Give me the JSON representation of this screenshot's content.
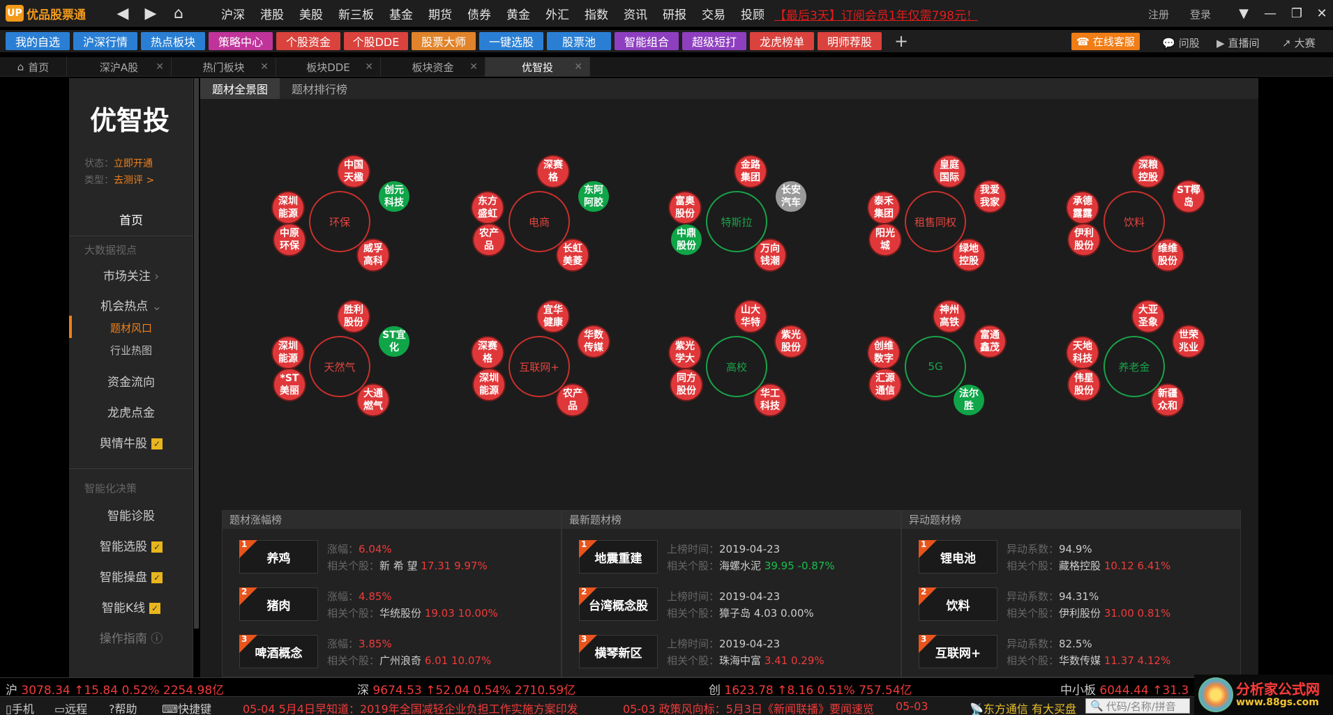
{
  "title_bar": {
    "logo_mark": "UP",
    "app_name": "优品股票通",
    "menu": [
      "沪深",
      "港股",
      "美股",
      "新三板",
      "基金",
      "期货",
      "债券",
      "黄金",
      "外汇",
      "指数",
      "资讯",
      "研报",
      "交易",
      "投顾"
    ],
    "promo": "【最后3天】订阅会员1年仅需798元！",
    "register": "注册",
    "login": "登录"
  },
  "toolbar": {
    "buttons": [
      {
        "label": "我的自选",
        "color": "#2a7fd4"
      },
      {
        "label": "沪深行情",
        "color": "#2a7fd4"
      },
      {
        "label": "热点板块",
        "color": "#2a7fd4"
      },
      {
        "label": "策略中心",
        "color": "#c0349a"
      },
      {
        "label": "个股资金",
        "color": "#d9423d"
      },
      {
        "label": "个股DDE",
        "color": "#d9423d"
      },
      {
        "label": "股票大师",
        "color": "#e0832a"
      },
      {
        "label": "一键选股",
        "color": "#2a7fd4"
      },
      {
        "label": "股票池",
        "color": "#2a7fd4"
      },
      {
        "label": "智能组合",
        "color": "#8e3fbf"
      },
      {
        "label": "超级短打",
        "color": "#8e3fbf"
      },
      {
        "label": "龙虎榜单",
        "color": "#d9423d"
      },
      {
        "label": "明师荐股",
        "color": "#d9423d"
      }
    ],
    "service": "在线客服",
    "ask": "问股",
    "live": "直播间",
    "market": "大赛"
  },
  "tabs": [
    {
      "label": "首页",
      "closable": false
    },
    {
      "label": "深沪A股",
      "closable": true
    },
    {
      "label": "热门板块",
      "closable": true
    },
    {
      "label": "板块DDE",
      "closable": true
    },
    {
      "label": "板块资金",
      "closable": true
    },
    {
      "label": "优智投",
      "closable": true,
      "active": true
    }
  ],
  "sidebar": {
    "brand": "优智投",
    "status_label": "状态：",
    "status_value": "立即开通",
    "type_label": "类型：",
    "type_value": "去测评 >",
    "home": "首页",
    "group1": "大数据视点",
    "market_focus": "市场关注",
    "opportunity": "机会热点",
    "theme_wind": "题材风口",
    "industry_map": "行业热图",
    "fund_flow": "资金流向",
    "dragon": "龙虎点金",
    "sentiment": "舆情牛股",
    "group2": "智能化决策",
    "diagnosis": "智能诊股",
    "selection": "智能选股",
    "trading": "智能操盘",
    "kline": "智能K线",
    "guide": "操作指南"
  },
  "subtabs": [
    "题材全景图",
    "题材排行榜"
  ],
  "themes": [
    {
      "name": "环保",
      "green": false,
      "stocks": [
        {
          "n": "中国天楹",
          "c": "r"
        },
        {
          "n": "创元科技",
          "c": "gr"
        },
        {
          "n": "深圳能源",
          "c": "r"
        },
        {
          "n": "中原环保",
          "c": "r"
        },
        {
          "n": "威孚高科",
          "c": "r"
        }
      ]
    },
    {
      "name": "电商",
      "green": false,
      "stocks": [
        {
          "n": "深赛格",
          "c": "r"
        },
        {
          "n": "东阿阿胶",
          "c": "gr"
        },
        {
          "n": "东方盛虹",
          "c": "r"
        },
        {
          "n": "农产品",
          "c": "r"
        },
        {
          "n": "长虹美菱",
          "c": "r"
        }
      ]
    },
    {
      "name": "特斯拉",
      "green": true,
      "stocks": [
        {
          "n": "金路集团",
          "c": "r"
        },
        {
          "n": "长安汽车",
          "c": "gy"
        },
        {
          "n": "富奥股份",
          "c": "r"
        },
        {
          "n": "中鼎股份",
          "c": "gr"
        },
        {
          "n": "万向钱潮",
          "c": "r"
        }
      ]
    },
    {
      "name": "租售同权",
      "green": false,
      "stocks": [
        {
          "n": "皇庭国际",
          "c": "r"
        },
        {
          "n": "我爱我家",
          "c": "r"
        },
        {
          "n": "泰禾集团",
          "c": "r"
        },
        {
          "n": "阳光城",
          "c": "r"
        },
        {
          "n": "绿地控股",
          "c": "r"
        }
      ]
    },
    {
      "name": "饮料",
      "green": false,
      "stocks": [
        {
          "n": "深粮控股",
          "c": "r"
        },
        {
          "n": "ST椰岛",
          "c": "r"
        },
        {
          "n": "承德露露",
          "c": "r"
        },
        {
          "n": "伊利股份",
          "c": "r"
        },
        {
          "n": "维维股份",
          "c": "r"
        }
      ]
    },
    {
      "name": "天然气",
      "green": false,
      "stocks": [
        {
          "n": "胜利股份",
          "c": "r"
        },
        {
          "n": "ST宜化",
          "c": "gr"
        },
        {
          "n": "深圳能源",
          "c": "r"
        },
        {
          "n": "*ST美丽",
          "c": "r"
        },
        {
          "n": "大通燃气",
          "c": "r"
        }
      ]
    },
    {
      "name": "互联网+",
      "green": false,
      "stocks": [
        {
          "n": "宜华健康",
          "c": "r"
        },
        {
          "n": "华数传媒",
          "c": "r"
        },
        {
          "n": "深赛格",
          "c": "r"
        },
        {
          "n": "深圳能源",
          "c": "r"
        },
        {
          "n": "农产品",
          "c": "r"
        }
      ]
    },
    {
      "name": "高校",
      "green": true,
      "stocks": [
        {
          "n": "山大华特",
          "c": "r"
        },
        {
          "n": "紫光股份",
          "c": "r"
        },
        {
          "n": "紫光学大",
          "c": "r"
        },
        {
          "n": "同方股份",
          "c": "r"
        },
        {
          "n": "华工科技",
          "c": "r"
        }
      ]
    },
    {
      "name": "5G",
      "green": true,
      "stocks": [
        {
          "n": "神州高铁",
          "c": "r"
        },
        {
          "n": "富通鑫茂",
          "c": "r"
        },
        {
          "n": "创维数字",
          "c": "r"
        },
        {
          "n": "汇源通信",
          "c": "r"
        },
        {
          "n": "法尔胜",
          "c": "gr"
        }
      ]
    },
    {
      "name": "养老金",
      "green": true,
      "stocks": [
        {
          "n": "大亚圣象",
          "c": "r"
        },
        {
          "n": "世荣兆业",
          "c": "r"
        },
        {
          "n": "天地科技",
          "c": "r"
        },
        {
          "n": "伟星股份",
          "c": "r"
        },
        {
          "n": "新疆众和",
          "c": "r"
        }
      ]
    }
  ],
  "lists": [
    {
      "title": "题材涨幅榜",
      "k1": "涨幅：",
      "k2": "相关个股：",
      "rows": [
        {
          "rank": "1",
          "name": "养鸡",
          "v1": "6.04%",
          "stock": "新 希 望",
          "price": "17.31",
          "chg": "9.97%",
          "tone": "red"
        },
        {
          "rank": "2",
          "name": "猪肉",
          "v1": "4.85%",
          "stock": "华统股份",
          "price": "19.03",
          "chg": "10.00%",
          "tone": "red"
        },
        {
          "rank": "3",
          "name": "啤酒概念",
          "v1": "3.85%",
          "stock": "广州浪奇",
          "price": "6.01",
          "chg": "10.07%",
          "tone": "red"
        }
      ]
    },
    {
      "title": "最新题材榜",
      "k1": "上榜时间：",
      "k2": "相关个股：",
      "rows": [
        {
          "rank": "1",
          "name": "地震重建",
          "v1": "2019-04-23",
          "stock": "海螺水泥",
          "price": "39.95",
          "chg": "-0.87%",
          "tone": "grn"
        },
        {
          "rank": "2",
          "name": "台湾概念股",
          "v1": "2019-04-23",
          "stock": "獐子岛",
          "price": "4.03",
          "chg": "0.00%",
          "tone": "plain"
        },
        {
          "rank": "3",
          "name": "横琴新区",
          "v1": "2019-04-23",
          "stock": "珠海中富",
          "price": "3.41",
          "chg": "0.29%",
          "tone": "red"
        }
      ]
    },
    {
      "title": "异动题材榜",
      "k1": "异动系数：",
      "k2": "相关个股：",
      "rows": [
        {
          "rank": "1",
          "name": "锂电池",
          "v1": "94.9%",
          "stock": "藏格控股",
          "price": "10.12",
          "chg": "6.41%",
          "tone": "red"
        },
        {
          "rank": "2",
          "name": "饮料",
          "v1": "94.31%",
          "stock": "伊利股份",
          "price": "31.00",
          "chg": "0.81%",
          "tone": "red"
        },
        {
          "rank": "3",
          "name": "互联网+",
          "v1": "82.5%",
          "stock": "华数传媒",
          "price": "11.37",
          "chg": "4.12%",
          "tone": "red"
        }
      ]
    }
  ],
  "ticker": {
    "sh_label": "沪",
    "sh_val": "3078.34",
    "sh_chg": "↑15.84",
    "sh_pct": "0.52%",
    "sh_amt": "2254.98亿",
    "sz_label": "深",
    "sz_val": "9674.53",
    "sz_chg": "↑52.04",
    "sz_pct": "0.54%",
    "sz_amt": "2710.59亿",
    "cy_label": "创",
    "cy_val": "1623.78",
    "cy_chg": "↑8.16",
    "cy_pct": "0.51%",
    "cy_amt": "757.54亿",
    "zx_label": "中小板",
    "zx_val": "6044.44",
    "zx_chg": "↑31.3"
  },
  "statusbar": {
    "phone": "手机",
    "remote": "远程",
    "help": "帮助",
    "shortcut": "快捷键",
    "news1": "05-04 5月4日早知道：2019年全国减轻企业负担工作实施方案印发",
    "news2": "05-03 政策风向标：5月3日《新闻联播》要闻速览",
    "news3": "05-03",
    "broker": "东方通信 有大买盘",
    "search_placeholder": "代码/名称/拼音"
  },
  "watermark": {
    "title": "分析家公式网",
    "url": "www.88gs.com"
  }
}
